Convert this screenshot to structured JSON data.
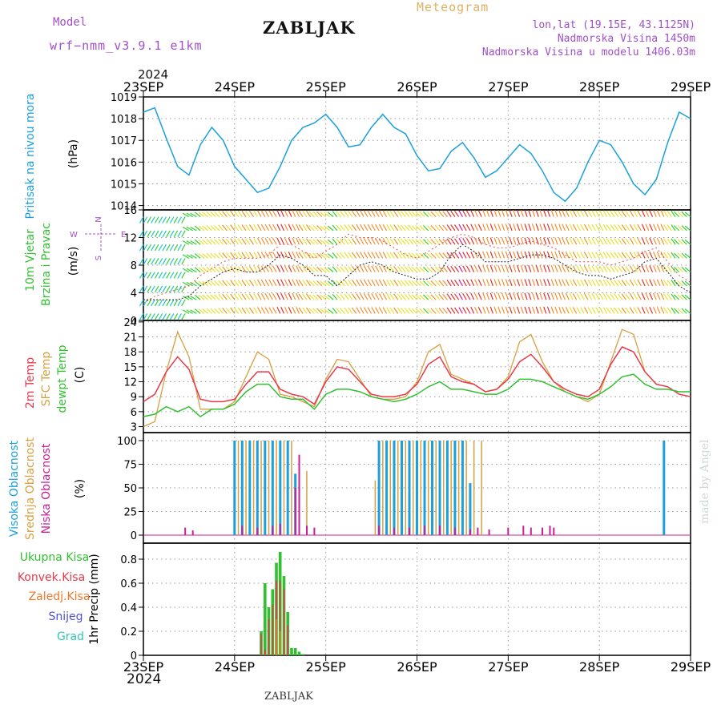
{
  "header": {
    "model_label": "Model",
    "model_name": "wrf−nmm_v3.9.1  e1km",
    "station_title": "ZABLJAK",
    "meteogram_label": "Meteogram",
    "lonlat": "lon,lat (19.15E, 43.1125N)",
    "altitude": "Nadmorska Visina 1450m",
    "model_altitude": "Nadmorska Visina u modelu 1406.03m",
    "year_top": "2024",
    "year_bottom": "2024",
    "footer_title": "ZABLJAK",
    "watermark": "made by Angel"
  },
  "colors": {
    "pressure": "#1aa0dc",
    "temp": "#e8384a",
    "sfc_temp": "#d8a040",
    "dewpt": "#30c030",
    "cloud_high": "#1aa0dc",
    "cloud_mid": "#d8a040",
    "cloud_low": "#c81e96",
    "precip_total": "#30c030",
    "precip_conv": "#e8384a",
    "precip_frozen": "#f07828",
    "snow": "#5050d0",
    "grad": "#30c8b4",
    "wind_label": "#30c030",
    "compass": "#a050c8"
  },
  "chart_data": [
    {
      "type": "line",
      "panel": "pressure",
      "ylabel_left": "Pritisak na nivou mora",
      "unit": "(hPa)",
      "x_ticks": [
        "23SEP",
        "24SEP",
        "25SEP",
        "26SEP",
        "27SEP",
        "28SEP",
        "29SEP"
      ],
      "ylim": [
        1013.8,
        1019.0
      ],
      "yticks": [
        "1014",
        "1015",
        "1016",
        "1017",
        "1018",
        "1019"
      ],
      "ytick_values": [
        1014,
        1015,
        1016,
        1017,
        1018,
        1019
      ],
      "x": [
        0,
        3,
        6,
        9,
        12,
        15,
        18,
        21,
        24,
        27,
        30,
        33,
        36,
        39,
        42,
        45,
        48,
        51,
        54,
        57,
        60,
        63,
        66,
        69,
        72,
        75,
        78,
        81,
        84,
        87,
        90,
        93,
        96,
        99,
        102,
        105,
        108,
        111,
        114,
        117,
        120,
        123,
        126,
        129,
        132,
        135,
        138,
        141,
        144
      ],
      "series": [
        {
          "values": [
            1018.3,
            1018.5,
            1017.1,
            1015.8,
            1015.4,
            1016.8,
            1017.6,
            1017.0,
            1015.8,
            1015.2,
            1014.6,
            1014.8,
            1015.8,
            1017.0,
            1017.6,
            1017.8,
            1018.2,
            1017.6,
            1016.7,
            1016.8,
            1017.6,
            1018.2,
            1017.6,
            1017.3,
            1016.3,
            1015.6,
            1015.7,
            1016.5,
            1016.9,
            1016.2,
            1015.3,
            1015.6,
            1016.2,
            1016.8,
            1016.4,
            1015.6,
            1014.6,
            1014.2,
            1014.8,
            1016.0,
            1017.0,
            1016.8,
            1016.0,
            1015.0,
            1014.5,
            1015.2,
            1016.9,
            1018.3,
            1018.0
          ]
        }
      ]
    },
    {
      "type": "line",
      "panel": "wind",
      "ylabel_left": [
        "10m Vjetar",
        "Brzina i Pravac"
      ],
      "unit": "(m/s)",
      "compass": [
        "N",
        "W",
        "E",
        "S"
      ],
      "ylim": [
        0,
        16
      ],
      "yticks": [
        "0",
        "4",
        "8",
        "12",
        "16"
      ],
      "ytick_values": [
        0,
        4,
        8,
        12,
        16
      ],
      "x": [
        0,
        3,
        6,
        9,
        12,
        15,
        18,
        21,
        24,
        27,
        30,
        33,
        36,
        39,
        42,
        45,
        48,
        51,
        54,
        57,
        60,
        63,
        66,
        69,
        72,
        75,
        78,
        81,
        84,
        87,
        90,
        93,
        96,
        99,
        102,
        105,
        108,
        111,
        114,
        117,
        120,
        123,
        126,
        129,
        132,
        135,
        138,
        141,
        144
      ],
      "series": [
        {
          "name": "speed",
          "values": [
            3.0,
            3.0,
            3.0,
            3.0,
            3.5,
            5.0,
            6.0,
            7.0,
            7.5,
            7.0,
            7.0,
            8.0,
            9.5,
            9.0,
            8.0,
            6.5,
            6.5,
            5.0,
            6.5,
            8.0,
            8.5,
            8.0,
            7.0,
            6.5,
            6.0,
            6.0,
            7.0,
            9.5,
            11.0,
            10.0,
            8.5,
            8.5,
            8.5,
            9.0,
            9.5,
            9.5,
            9.0,
            8.0,
            7.0,
            6.5,
            6.5,
            6.0,
            6.5,
            7.0,
            8.5,
            9.0,
            7.0,
            5.0,
            4.0
          ]
        },
        {
          "name": "gust",
          "values": [
            2.5,
            3.5,
            4.0,
            4.5,
            5.0,
            6.5,
            7.5,
            8.5,
            9.0,
            9.0,
            9.0,
            9.5,
            11.0,
            11.0,
            10.0,
            9.0,
            10.0,
            11.0,
            12.5,
            12.0,
            12.0,
            11.5,
            10.5,
            9.5,
            9.0,
            10.0,
            11.0,
            12.0,
            12.5,
            12.0,
            11.0,
            10.5,
            10.5,
            11.0,
            11.5,
            11.0,
            10.5,
            9.5,
            8.5,
            8.5,
            8.5,
            8.0,
            8.5,
            9.0,
            10.0,
            10.5,
            8.5,
            6.5,
            5.5
          ]
        },
        {
          "name": "direction_deg",
          "values": [
            330,
            330,
            330,
            330,
            240,
            230,
            225,
            220,
            215,
            215,
            210,
            210,
            205,
            205,
            215,
            225,
            230,
            220,
            215,
            210,
            210,
            210,
            215,
            220,
            225,
            225,
            220,
            215,
            210,
            205,
            200,
            200,
            200,
            200,
            200,
            200,
            200,
            205,
            210,
            210,
            210,
            215,
            215,
            210,
            205,
            205,
            215,
            225,
            230
          ]
        }
      ]
    },
    {
      "type": "line",
      "panel": "temperature",
      "ylabel_left": [
        "2m Temp",
        "SFC Temp",
        "dewpt Temp"
      ],
      "unit": "(C)",
      "ylim": [
        1.8,
        24.3
      ],
      "yticks": [
        "3",
        "6",
        "9",
        "12",
        "15",
        "18",
        "21",
        "24"
      ],
      "ytick_values": [
        3,
        6,
        9,
        12,
        15,
        18,
        21,
        24
      ],
      "x": [
        0,
        3,
        6,
        9,
        12,
        15,
        18,
        21,
        24,
        27,
        30,
        33,
        36,
        39,
        42,
        45,
        48,
        51,
        54,
        57,
        60,
        63,
        66,
        69,
        72,
        75,
        78,
        81,
        84,
        87,
        90,
        93,
        96,
        99,
        102,
        105,
        108,
        111,
        114,
        117,
        120,
        123,
        126,
        129,
        132,
        135,
        138,
        141,
        144
      ],
      "series": [
        {
          "name": "2m Temp",
          "values": [
            8.0,
            9.5,
            14.0,
            17.0,
            14.5,
            8.5,
            8.0,
            8.0,
            8.5,
            11.5,
            14.0,
            14.0,
            10.5,
            9.5,
            9.0,
            7.5,
            12.0,
            15.0,
            14.5,
            12.0,
            9.5,
            9.0,
            9.0,
            9.5,
            11.5,
            15.5,
            17.0,
            13.0,
            12.0,
            11.5,
            10.0,
            10.5,
            12.5,
            16.0,
            17.5,
            15.0,
            12.0,
            10.5,
            9.5,
            9.0,
            10.5,
            15.5,
            19.0,
            18.0,
            14.0,
            11.5,
            11.0,
            9.5,
            9.0
          ]
        },
        {
          "name": "SFC Temp",
          "values": [
            3.0,
            4.0,
            14.0,
            22.0,
            17.0,
            6.5,
            6.5,
            6.5,
            8.0,
            13.0,
            18.0,
            16.5,
            9.5,
            9.0,
            8.0,
            7.0,
            12.5,
            16.5,
            16.0,
            12.5,
            9.0,
            8.5,
            8.5,
            9.0,
            12.0,
            18.0,
            19.5,
            13.5,
            12.5,
            11.5,
            10.0,
            10.5,
            13.0,
            20.0,
            21.5,
            16.0,
            12.0,
            10.0,
            9.0,
            8.0,
            9.5,
            16.0,
            22.5,
            21.5,
            14.0,
            11.5,
            11.0,
            9.5,
            9.0
          ]
        },
        {
          "name": "dewpt Temp",
          "values": [
            5.0,
            5.5,
            7.0,
            6.0,
            7.0,
            5.0,
            6.5,
            6.5,
            7.5,
            10.0,
            11.5,
            11.5,
            9.0,
            8.5,
            8.5,
            6.5,
            9.5,
            10.5,
            10.5,
            10.0,
            9.0,
            8.5,
            8.0,
            8.5,
            9.5,
            11.0,
            12.0,
            10.5,
            10.5,
            10.0,
            9.5,
            9.5,
            10.5,
            12.5,
            12.5,
            12.0,
            11.0,
            10.0,
            9.0,
            8.5,
            9.5,
            11.0,
            13.0,
            13.5,
            11.5,
            10.5,
            10.5,
            10.0,
            10.0
          ]
        }
      ]
    },
    {
      "type": "bar",
      "panel": "clouds",
      "ylabel_left": [
        "Visoka Oblacnost",
        "Srednja Oblacnost",
        "Niska Oblacnost"
      ],
      "unit": "(%)",
      "ylim": [
        0,
        100
      ],
      "yticks": [
        "0",
        "25",
        "50",
        "75",
        "100"
      ],
      "ytick_values": [
        0,
        25,
        50,
        75,
        100
      ],
      "series": [
        {
          "name": "Visoka Oblacnost",
          "x": [
            24,
            26,
            28,
            30,
            32,
            34,
            36,
            38,
            40,
            42,
            62,
            64,
            66,
            68,
            70,
            72,
            74,
            76,
            78,
            80,
            82,
            84,
            86,
            88,
            137
          ],
          "values": [
            100,
            100,
            100,
            100,
            100,
            100,
            100,
            100,
            65,
            0,
            100,
            100,
            100,
            100,
            100,
            100,
            100,
            100,
            100,
            100,
            100,
            100,
            55,
            0,
            100
          ]
        },
        {
          "name": "Srednja Oblacnost",
          "x": [
            25,
            27,
            29,
            31,
            33,
            35,
            37,
            39,
            41,
            43,
            61,
            63,
            65,
            67,
            69,
            71,
            73,
            75,
            77,
            79,
            81,
            83,
            85,
            87,
            89
          ],
          "values": [
            100,
            100,
            100,
            100,
            100,
            100,
            100,
            100,
            85,
            68,
            58,
            100,
            100,
            100,
            100,
            100,
            100,
            100,
            100,
            100,
            100,
            100,
            100,
            100,
            100
          ]
        },
        {
          "name": "Niska Oblacnost",
          "x": [
            11,
            13,
            26,
            30,
            34,
            36,
            40,
            41,
            43,
            45,
            62,
            66,
            70,
            74,
            78,
            82,
            86,
            88,
            91,
            96,
            100,
            102,
            105,
            107,
            108
          ],
          "values": [
            8,
            5,
            10,
            8,
            10,
            12,
            50,
            85,
            10,
            8,
            10,
            8,
            8,
            10,
            10,
            8,
            6,
            8,
            6,
            8,
            10,
            8,
            8,
            10,
            8
          ]
        }
      ]
    },
    {
      "type": "bar",
      "panel": "precip",
      "ylabel_left": [
        "Ukupna Kisa",
        "Konvek.Kisa",
        "Zaledj.Kisa",
        "Snijeg",
        "Grad"
      ],
      "unit": "1hr Precip (mm)",
      "ylim": [
        0,
        0.9
      ],
      "yticks": [
        "0",
        "0.2",
        "0.4",
        "0.6",
        "0.8"
      ],
      "ytick_values": [
        0,
        0.2,
        0.4,
        0.6,
        0.8
      ],
      "x_bottom_ticks": [
        "23SEP",
        "24SEP",
        "25SEP",
        "26SEP",
        "27SEP",
        "28SEP",
        "29SEP"
      ],
      "series": [
        {
          "name": "Ukupna Kisa",
          "x": [
            31,
            32,
            33,
            34,
            35,
            36,
            37,
            38,
            39,
            40,
            41,
            42
          ],
          "values": [
            0.2,
            0.6,
            0.4,
            0.55,
            0.77,
            0.86,
            0.66,
            0.36,
            0.06,
            0.06,
            0.03,
            0.01
          ]
        },
        {
          "name": "Konvek.Kisa",
          "x": [
            31,
            32,
            33,
            34,
            35,
            36,
            37,
            38
          ],
          "values": [
            0.18,
            0.05,
            0.3,
            0.42,
            0.62,
            0.62,
            0.55,
            0.25
          ]
        },
        {
          "name": "Zaledj.Kisa",
          "x": [
            35,
            36
          ],
          "values": [
            0.3,
            0.2
          ]
        },
        {
          "name": "Snijeg",
          "x": [],
          "values": []
        },
        {
          "name": "Grad",
          "x": [],
          "values": []
        }
      ]
    }
  ]
}
